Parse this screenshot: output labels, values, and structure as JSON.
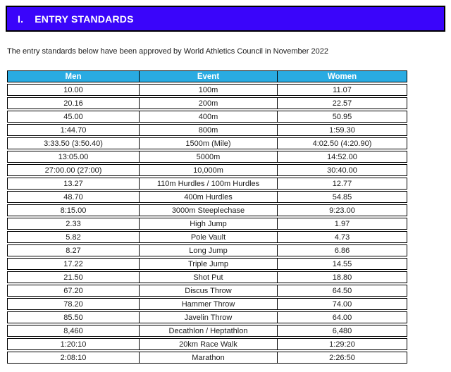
{
  "section": {
    "label": "I.",
    "title": "ENTRY STANDARDS"
  },
  "intro_text": "The entry standards below have been approved by World Athletics Council in November 2022",
  "colors": {
    "banner_bg": "#3A05FA",
    "banner_text": "#FFFFFF",
    "table_header_bg": "#29ABE2",
    "table_header_text": "#FFFFFF",
    "table_border": "#000000",
    "body_text": "#1A1A1A"
  },
  "table": {
    "columns": [
      "Men",
      "Event",
      "Women"
    ],
    "rows": [
      [
        "10.00",
        "100m",
        "11.07"
      ],
      [
        "20.16",
        "200m",
        "22.57"
      ],
      [
        "45.00",
        "400m",
        "50.95"
      ],
      [
        "1:44.70",
        "800m",
        "1:59.30"
      ],
      [
        "3:33.50 (3:50.40)",
        "1500m (Mile)",
        "4:02.50 (4:20.90)"
      ],
      [
        "13:05.00",
        "5000m",
        "14:52.00"
      ],
      [
        "27:00.00 (27:00)",
        "10,000m",
        "30:40.00"
      ],
      [
        "13.27",
        "110m Hurdles / 100m Hurdles",
        "12.77"
      ],
      [
        "48.70",
        "400m Hurdles",
        "54.85"
      ],
      [
        "8:15.00",
        "3000m Steeplechase",
        "9:23.00"
      ],
      [
        "2.33",
        "High Jump",
        "1.97"
      ],
      [
        "5.82",
        "Pole Vault",
        "4.73"
      ],
      [
        "8.27",
        "Long Jump",
        "6.86"
      ],
      [
        "17.22",
        "Triple Jump",
        "14.55"
      ],
      [
        "21.50",
        "Shot Put",
        "18.80"
      ],
      [
        "67.20",
        "Discus Throw",
        "64.50"
      ],
      [
        "78.20",
        "Hammer Throw",
        "74.00"
      ],
      [
        "85.50",
        "Javelin Throw",
        "64.00"
      ],
      [
        "8,460",
        "Decathlon / Heptathlon",
        "6,480"
      ],
      [
        "1:20:10",
        "20km Race Walk",
        "1:29:20"
      ],
      [
        "2:08:10",
        "Marathon",
        "2:26:50"
      ]
    ]
  }
}
